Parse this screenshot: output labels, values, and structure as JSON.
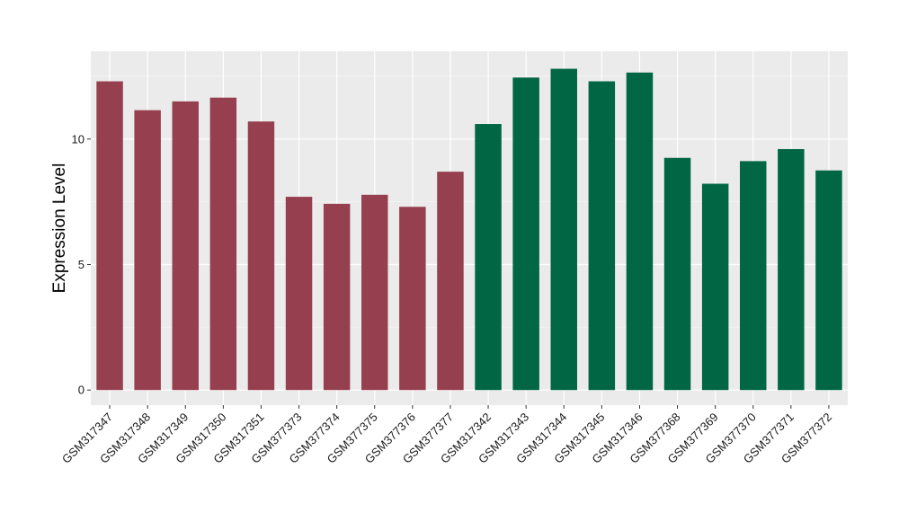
{
  "chart_data": {
    "type": "bar",
    "title": "",
    "xlabel": "",
    "ylabel": "Expression Level",
    "ylim": [
      -0.6,
      13.5
    ],
    "yticks": [
      0,
      5,
      10
    ],
    "grid": true,
    "background": "#EBEBEB",
    "categories": [
      "GSM317347",
      "GSM317348",
      "GSM317349",
      "GSM317350",
      "GSM317351",
      "GSM377373",
      "GSM377374",
      "GSM377375",
      "GSM377376",
      "GSM377377",
      "GSM317342",
      "GSM317343",
      "GSM317344",
      "GSM317345",
      "GSM317346",
      "GSM377368",
      "GSM377369",
      "GSM377370",
      "GSM377371",
      "GSM377372"
    ],
    "values": [
      12.3,
      11.15,
      11.5,
      11.65,
      10.7,
      7.7,
      7.42,
      7.78,
      7.3,
      8.7,
      10.6,
      12.45,
      12.8,
      12.3,
      12.65,
      9.25,
      8.22,
      9.12,
      9.6,
      8.75
    ],
    "bar_colors": [
      "#96404F",
      "#96404F",
      "#96404F",
      "#96404F",
      "#96404F",
      "#96404F",
      "#96404F",
      "#96404F",
      "#96404F",
      "#96404F",
      "#006643",
      "#006643",
      "#006643",
      "#006643",
      "#006643",
      "#006643",
      "#006643",
      "#006643",
      "#006643",
      "#006643"
    ]
  }
}
